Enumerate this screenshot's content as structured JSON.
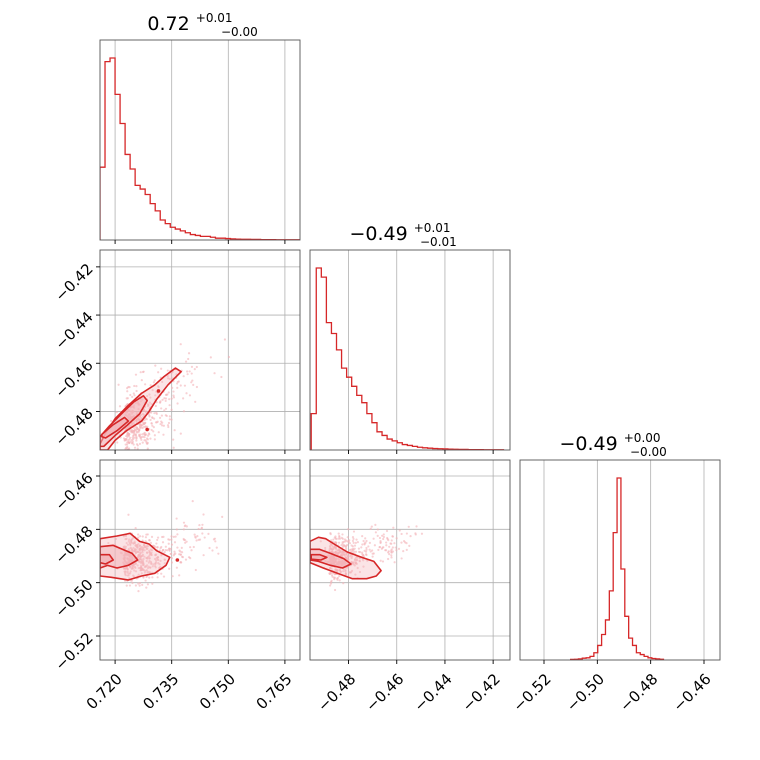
{
  "figure": {
    "type": "corner-plot",
    "colors": {
      "primary": "#d62728",
      "light": "#f3b3b8",
      "grid": "#b0b0b0",
      "frame": "#555555"
    }
  },
  "chart_data": [
    {
      "type": "histogram",
      "panel": "p0_0",
      "title": {
        "median": "0.72",
        "plus": "+0.01",
        "minus": "−0.00"
      },
      "xlim": [
        0.716,
        0.769
      ],
      "xticks": [
        "0.720",
        "0.735",
        "0.750",
        "0.765"
      ],
      "xtick_values": [
        0.72,
        0.735,
        0.75,
        0.765
      ],
      "bin_start": 0.716,
      "bin_width": 0.00133,
      "counts": [
        40,
        98,
        100,
        80,
        64,
        47,
        39,
        30,
        28,
        25,
        20,
        16,
        11,
        9,
        7,
        6,
        5,
        4,
        3,
        2.5,
        2,
        2,
        1.5,
        1,
        1,
        0.8,
        0.6,
        0.5,
        0.4,
        0.4,
        0.3,
        0.3,
        0.2,
        0.2,
        0.2,
        0.1,
        0.1,
        0.1,
        0.1,
        0.1
      ]
    },
    {
      "type": "histogram",
      "panel": "p1_1",
      "title": {
        "median": "−0.49",
        "plus": "+0.01",
        "minus": "−0.01"
      },
      "xlim": [
        -0.496,
        -0.413
      ],
      "xticks": [
        "−0.48",
        "−0.46",
        "−0.44",
        "−0.42"
      ],
      "xtick_values": [
        -0.48,
        -0.46,
        -0.44,
        -0.42
      ],
      "bin_start": -0.4955,
      "bin_width": 0.0021,
      "counts": [
        20,
        100,
        95,
        70,
        64,
        55,
        45,
        40,
        35,
        30,
        26,
        20,
        15,
        10,
        8,
        6,
        5,
        4,
        3,
        2.5,
        2,
        1.5,
        1.2,
        1,
        0.8,
        0.7,
        0.6,
        0.5,
        0.4,
        0.3,
        0.3,
        0.2,
        0.2,
        0.2,
        0.1,
        0.1,
        0.1,
        0.1
      ]
    },
    {
      "type": "histogram",
      "panel": "p2_2",
      "title": {
        "median": "−0.49",
        "plus": "+0.00",
        "minus": "−0.00"
      },
      "xlim": [
        -0.529,
        -0.454
      ],
      "xticks": [
        "−0.52",
        "−0.50",
        "−0.48",
        "−0.46"
      ],
      "xtick_values": [
        -0.52,
        -0.5,
        -0.48,
        -0.46
      ],
      "bin_start": -0.51,
      "bin_width": 0.00145,
      "counts": [
        0.3,
        0.4,
        0.6,
        1,
        1.2,
        2,
        4,
        8,
        14,
        22,
        38,
        70,
        100,
        50,
        24,
        12,
        8,
        4,
        3,
        2,
        1.2,
        0.8,
        0.6,
        0.4
      ]
    },
    {
      "type": "scatter-contour",
      "panel": "p1_0",
      "xlim": [
        0.716,
        0.769
      ],
      "ylim": [
        -0.496,
        -0.413
      ],
      "yticks": [
        "−0.42",
        "−0.44",
        "−0.46",
        "−0.48"
      ],
      "ytick_values": [
        -0.42,
        -0.44,
        -0.46,
        -0.48
      ],
      "scatter": {
        "n": 520,
        "center": [
          0.724,
          -0.486
        ],
        "spread": [
          0.005,
          0.006
        ],
        "tail": [
          0.018,
          0.028
        ],
        "seed": 11
      },
      "contours": [
        [
          [
            0.716,
            -0.4935
          ],
          [
            0.7175,
            -0.489
          ],
          [
            0.72,
            -0.483
          ],
          [
            0.7235,
            -0.4775
          ],
          [
            0.727,
            -0.4725
          ],
          [
            0.7305,
            -0.469
          ],
          [
            0.733,
            -0.4655
          ],
          [
            0.736,
            -0.462
          ],
          [
            0.7375,
            -0.4635
          ],
          [
            0.734,
            -0.469
          ],
          [
            0.731,
            -0.475
          ],
          [
            0.729,
            -0.48
          ],
          [
            0.727,
            -0.484
          ],
          [
            0.723,
            -0.488
          ],
          [
            0.72,
            -0.492
          ],
          [
            0.718,
            -0.496
          ],
          [
            0.716,
            -0.496
          ]
        ],
        [
          [
            0.716,
            -0.4905
          ],
          [
            0.7185,
            -0.486
          ],
          [
            0.722,
            -0.4805
          ],
          [
            0.725,
            -0.476
          ],
          [
            0.7275,
            -0.4735
          ],
          [
            0.7285,
            -0.4755
          ],
          [
            0.7265,
            -0.481
          ],
          [
            0.723,
            -0.486
          ],
          [
            0.72,
            -0.49
          ],
          [
            0.717,
            -0.4945
          ],
          [
            0.716,
            -0.4945
          ]
        ],
        [
          [
            0.7165,
            -0.4895
          ],
          [
            0.7195,
            -0.4855
          ],
          [
            0.7225,
            -0.4825
          ],
          [
            0.7235,
            -0.484
          ],
          [
            0.7205,
            -0.488
          ],
          [
            0.7175,
            -0.491
          ],
          [
            0.7165,
            -0.4905
          ]
        ]
      ],
      "islands": [
        [
          0.7285,
          -0.4875
        ],
        [
          0.7315,
          -0.4715
        ]
      ]
    },
    {
      "type": "scatter-contour",
      "panel": "p2_0",
      "xlim": [
        0.716,
        0.769
      ],
      "ylim": [
        -0.529,
        -0.454
      ],
      "yticks": [
        "−0.46",
        "−0.48",
        "−0.50",
        "−0.52"
      ],
      "ytick_values": [
        -0.46,
        -0.48,
        -0.5,
        -0.52
      ],
      "scatter": {
        "n": 520,
        "center": [
          0.724,
          -0.491
        ],
        "spread": [
          0.006,
          0.0045
        ],
        "tail": [
          0.02,
          0.009
        ],
        "seed": 23
      },
      "contours": [
        [
          [
            0.716,
            -0.4835
          ],
          [
            0.7205,
            -0.4825
          ],
          [
            0.724,
            -0.4815
          ],
          [
            0.7265,
            -0.4845
          ],
          [
            0.729,
            -0.4855
          ],
          [
            0.731,
            -0.488
          ],
          [
            0.7345,
            -0.4905
          ],
          [
            0.7335,
            -0.4935
          ],
          [
            0.7305,
            -0.4965
          ],
          [
            0.727,
            -0.4975
          ],
          [
            0.7235,
            -0.499
          ],
          [
            0.719,
            -0.498
          ],
          [
            0.716,
            -0.4975
          ]
        ],
        [
          [
            0.716,
            -0.4865
          ],
          [
            0.7195,
            -0.486
          ],
          [
            0.722,
            -0.4875
          ],
          [
            0.7245,
            -0.489
          ],
          [
            0.726,
            -0.4915
          ],
          [
            0.7235,
            -0.4935
          ],
          [
            0.7205,
            -0.4945
          ],
          [
            0.718,
            -0.4935
          ],
          [
            0.716,
            -0.4945
          ]
        ],
        [
          [
            0.716,
            -0.4895
          ],
          [
            0.7185,
            -0.4895
          ],
          [
            0.7195,
            -0.4915
          ],
          [
            0.7175,
            -0.493
          ],
          [
            0.716,
            -0.4925
          ]
        ]
      ],
      "islands": [
        [
          0.7365,
          -0.4915
        ]
      ]
    },
    {
      "type": "scatter-contour",
      "panel": "p2_1",
      "xlim": [
        -0.496,
        -0.413
      ],
      "ylim": [
        -0.529,
        -0.454
      ],
      "scatter": {
        "n": 520,
        "center": [
          -0.486,
          -0.491
        ],
        "spread": [
          0.0065,
          0.004
        ],
        "tail": [
          0.03,
          0.008
        ],
        "seed": 37
      },
      "contours": [
        [
          [
            -0.496,
            -0.4845
          ],
          [
            -0.4925,
            -0.483
          ],
          [
            -0.4895,
            -0.4835
          ],
          [
            -0.486,
            -0.4855
          ],
          [
            -0.4805,
            -0.4885
          ],
          [
            -0.4745,
            -0.4905
          ],
          [
            -0.4695,
            -0.492
          ],
          [
            -0.4665,
            -0.4955
          ],
          [
            -0.4685,
            -0.4975
          ],
          [
            -0.4725,
            -0.4985
          ],
          [
            -0.4785,
            -0.4985
          ],
          [
            -0.4845,
            -0.4965
          ],
          [
            -0.4905,
            -0.4945
          ],
          [
            -0.496,
            -0.4925
          ]
        ],
        [
          [
            -0.496,
            -0.4875
          ],
          [
            -0.492,
            -0.4875
          ],
          [
            -0.4875,
            -0.489
          ],
          [
            -0.482,
            -0.491
          ],
          [
            -0.479,
            -0.493
          ],
          [
            -0.4825,
            -0.4945
          ],
          [
            -0.4875,
            -0.4935
          ],
          [
            -0.4925,
            -0.492
          ],
          [
            -0.496,
            -0.4915
          ]
        ],
        [
          [
            -0.4955,
            -0.4895
          ],
          [
            -0.492,
            -0.4895
          ],
          [
            -0.489,
            -0.4905
          ],
          [
            -0.4915,
            -0.4915
          ],
          [
            -0.4955,
            -0.4912
          ]
        ]
      ]
    }
  ]
}
